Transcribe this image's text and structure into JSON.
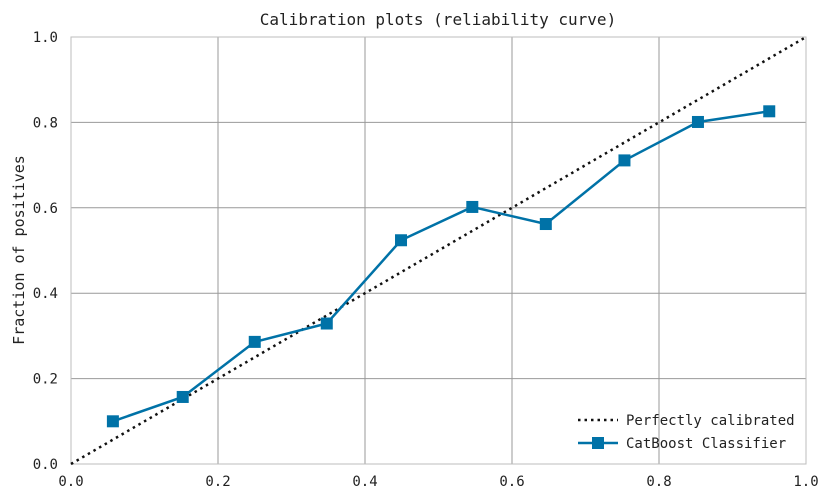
{
  "chart_data": {
    "type": "line",
    "title": "Calibration plots (reliability curve)",
    "xlabel": "",
    "ylabel": "Fraction of positives",
    "xlim": [
      0.0,
      1.0
    ],
    "ylim": [
      0.0,
      1.0
    ],
    "xticks": [
      "0.0",
      "0.2",
      "0.4",
      "0.6",
      "0.8",
      "1.0"
    ],
    "yticks": [
      "0.0",
      "0.2",
      "0.4",
      "0.6",
      "0.8",
      "1.0"
    ],
    "grid": true,
    "legend_position": "lower-right",
    "series": [
      {
        "name": "Perfectly calibrated",
        "style": "dotted",
        "color": "#111111",
        "x": [
          0.0,
          1.0
        ],
        "y": [
          0.0,
          1.0
        ]
      },
      {
        "name": "CatBoost Classifier",
        "style": "solid-square-markers",
        "color": "#0072a7",
        "x": [
          0.057,
          0.152,
          0.25,
          0.348,
          0.449,
          0.546,
          0.646,
          0.753,
          0.853,
          0.95
        ],
        "y": [
          0.1,
          0.157,
          0.286,
          0.329,
          0.524,
          0.602,
          0.562,
          0.711,
          0.801,
          0.826
        ]
      }
    ]
  }
}
